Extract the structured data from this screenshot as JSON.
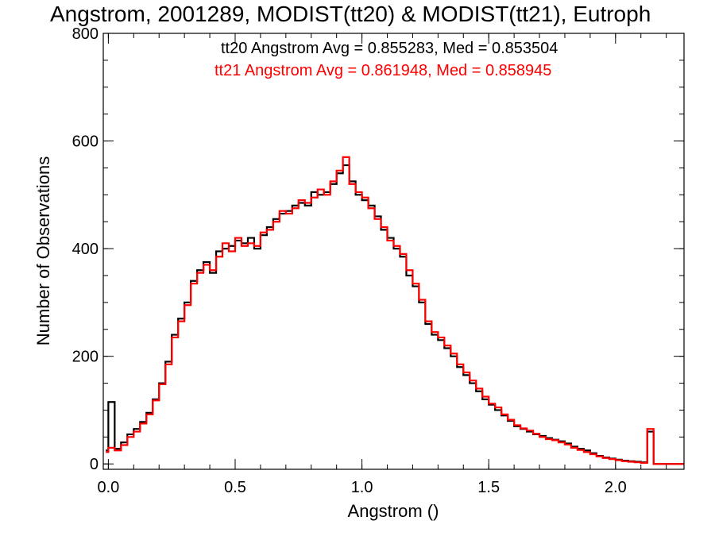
{
  "chart_data": {
    "type": "line",
    "title": "Angstrom, 2001289, MODIST(tt20) & MODIST(tt21), Eutroph",
    "xlabel": "Angstrom ()",
    "ylabel": "Number of Observations",
    "xlim": [
      -0.02,
      2.27
    ],
    "ylim": [
      -10,
      800
    ],
    "xticks": [
      0.0,
      0.5,
      1.0,
      1.5,
      2.0
    ],
    "xtick_labels": [
      "0.0",
      "0.5",
      "1.0",
      "1.5",
      "2.0"
    ],
    "yticks": [
      0,
      200,
      400,
      600,
      800
    ],
    "ytick_labels": [
      "0",
      "200",
      "400",
      "600",
      "800"
    ],
    "x_minor_step": 0.1,
    "y_minor_step": 50,
    "grid": false,
    "step_style": "histogram",
    "legend_position": "top-right",
    "series": [
      {
        "name": "tt20",
        "color": "#000000",
        "legend": "tt20 Angstrom Avg = 0.855283, Med = 0.853504",
        "x": [
          -0.01,
          0.0,
          0.025,
          0.05,
          0.075,
          0.1,
          0.125,
          0.15,
          0.175,
          0.2,
          0.225,
          0.25,
          0.275,
          0.3,
          0.325,
          0.35,
          0.375,
          0.4,
          0.425,
          0.45,
          0.475,
          0.5,
          0.525,
          0.55,
          0.575,
          0.6,
          0.625,
          0.65,
          0.675,
          0.7,
          0.725,
          0.75,
          0.775,
          0.8,
          0.825,
          0.85,
          0.875,
          0.9,
          0.925,
          0.95,
          0.975,
          1.0,
          1.025,
          1.05,
          1.075,
          1.1,
          1.125,
          1.15,
          1.175,
          1.2,
          1.225,
          1.25,
          1.275,
          1.3,
          1.325,
          1.35,
          1.375,
          1.4,
          1.425,
          1.45,
          1.475,
          1.5,
          1.525,
          1.55,
          1.575,
          1.6,
          1.625,
          1.65,
          1.675,
          1.7,
          1.725,
          1.75,
          1.775,
          1.8,
          1.825,
          1.85,
          1.875,
          1.9,
          1.925,
          1.95,
          1.975,
          2.0,
          2.025,
          2.05,
          2.075,
          2.1,
          2.125,
          2.15,
          2.175,
          2.27
        ],
        "y": [
          25,
          115,
          28,
          40,
          55,
          65,
          78,
          95,
          120,
          150,
          190,
          240,
          270,
          300,
          340,
          360,
          375,
          355,
          395,
          400,
          405,
          415,
          410,
          420,
          400,
          425,
          440,
          455,
          465,
          470,
          480,
          485,
          480,
          505,
          500,
          505,
          520,
          540,
          555,
          525,
          500,
          490,
          480,
          460,
          435,
          420,
          400,
          385,
          350,
          330,
          300,
          260,
          240,
          230,
          215,
          200,
          180,
          165,
          150,
          135,
          120,
          110,
          100,
          90,
          80,
          70,
          65,
          60,
          55,
          52,
          48,
          45,
          42,
          38,
          32,
          28,
          25,
          20,
          15,
          12,
          10,
          8,
          6,
          5,
          4,
          3,
          60,
          0,
          0,
          0
        ]
      },
      {
        "name": "tt21",
        "color": "#ff0000",
        "legend": "tt21 Angstrom Avg = 0.861948, Med = 0.858945",
        "x": [
          -0.01,
          0.0,
          0.025,
          0.05,
          0.075,
          0.1,
          0.125,
          0.15,
          0.175,
          0.2,
          0.225,
          0.25,
          0.275,
          0.3,
          0.325,
          0.35,
          0.375,
          0.4,
          0.425,
          0.45,
          0.475,
          0.5,
          0.525,
          0.55,
          0.575,
          0.6,
          0.625,
          0.65,
          0.675,
          0.7,
          0.725,
          0.75,
          0.775,
          0.8,
          0.825,
          0.85,
          0.875,
          0.9,
          0.925,
          0.95,
          0.975,
          1.0,
          1.025,
          1.05,
          1.075,
          1.1,
          1.125,
          1.15,
          1.175,
          1.2,
          1.225,
          1.25,
          1.275,
          1.3,
          1.325,
          1.35,
          1.375,
          1.4,
          1.425,
          1.45,
          1.475,
          1.5,
          1.525,
          1.55,
          1.575,
          1.6,
          1.625,
          1.65,
          1.675,
          1.7,
          1.725,
          1.75,
          1.775,
          1.8,
          1.825,
          1.85,
          1.875,
          1.9,
          1.925,
          1.95,
          1.975,
          2.0,
          2.025,
          2.05,
          2.075,
          2.1,
          2.125,
          2.15,
          2.175,
          2.27
        ],
        "y": [
          22,
          30,
          25,
          35,
          50,
          60,
          75,
          92,
          118,
          148,
          185,
          235,
          265,
          295,
          335,
          355,
          370,
          360,
          385,
          410,
          395,
          420,
          405,
          410,
          405,
          430,
          435,
          450,
          470,
          465,
          475,
          490,
          485,
          495,
          510,
          500,
          525,
          545,
          570,
          520,
          505,
          495,
          475,
          455,
          440,
          415,
          405,
          390,
          360,
          335,
          305,
          265,
          245,
          235,
          220,
          205,
          185,
          170,
          155,
          140,
          125,
          112,
          105,
          92,
          82,
          72,
          66,
          62,
          56,
          50,
          46,
          44,
          40,
          36,
          30,
          26,
          22,
          18,
          14,
          11,
          9,
          7,
          5,
          4,
          3,
          2,
          65,
          0,
          0,
          0
        ]
      }
    ]
  }
}
